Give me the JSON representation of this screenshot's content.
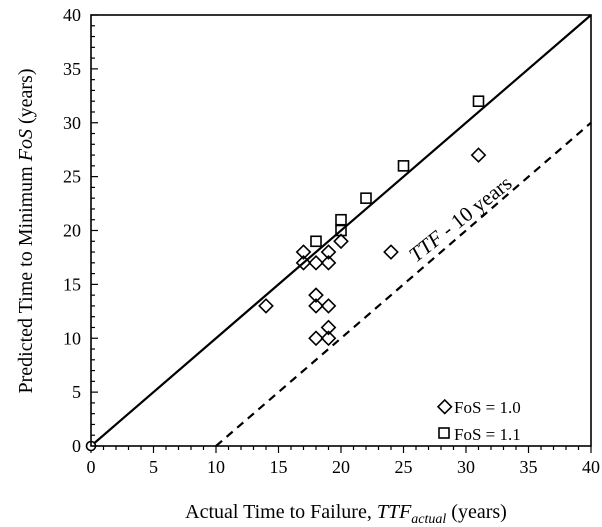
{
  "chart_data": {
    "type": "scatter",
    "title": "",
    "xlabel_prefix": "Actual Time to Failure, ",
    "xlabel_var": "TTF",
    "xlabel_sub": "actual",
    "xlabel_suffix": " (years)",
    "ylabel_prefix": "Predicted Time to Minimum ",
    "ylabel_var": "FoS",
    "ylabel_suffix": " (years)",
    "xlim": [
      0,
      40
    ],
    "ylim": [
      0,
      40
    ],
    "xticks": [
      "0",
      "5",
      "10",
      "15",
      "20",
      "25",
      "30",
      "35",
      "40"
    ],
    "yticks": [
      "0",
      "5",
      "10",
      "15",
      "20",
      "25",
      "30",
      "35",
      "40"
    ],
    "grid": false,
    "legend_position": "bottom-right",
    "series": [
      {
        "name": "FoS = 1.0",
        "marker": "diamond",
        "points": [
          [
            14,
            13
          ],
          [
            17,
            18
          ],
          [
            17,
            17
          ],
          [
            18,
            17
          ],
          [
            18,
            14
          ],
          [
            18,
            13
          ],
          [
            18,
            10
          ],
          [
            19,
            18
          ],
          [
            19,
            17
          ],
          [
            19,
            13
          ],
          [
            19,
            11
          ],
          [
            19,
            10
          ],
          [
            20,
            19
          ],
          [
            24,
            18
          ],
          [
            31,
            27
          ]
        ]
      },
      {
        "name": "FoS = 1.1",
        "marker": "square",
        "points": [
          [
            18,
            19
          ],
          [
            20,
            20
          ],
          [
            20,
            21
          ],
          [
            22,
            23
          ],
          [
            25,
            26
          ],
          [
            31,
            32
          ]
        ]
      }
    ],
    "lines": [
      {
        "name": "1:1",
        "style": "solid",
        "points": [
          [
            0,
            0
          ],
          [
            40,
            40
          ]
        ]
      },
      {
        "name": "TTF - 10 years",
        "style": "dashed",
        "points": [
          [
            10,
            0
          ],
          [
            40,
            30
          ]
        ]
      }
    ],
    "annotation": {
      "var": "TTF",
      "rest": " - 10 years"
    }
  }
}
